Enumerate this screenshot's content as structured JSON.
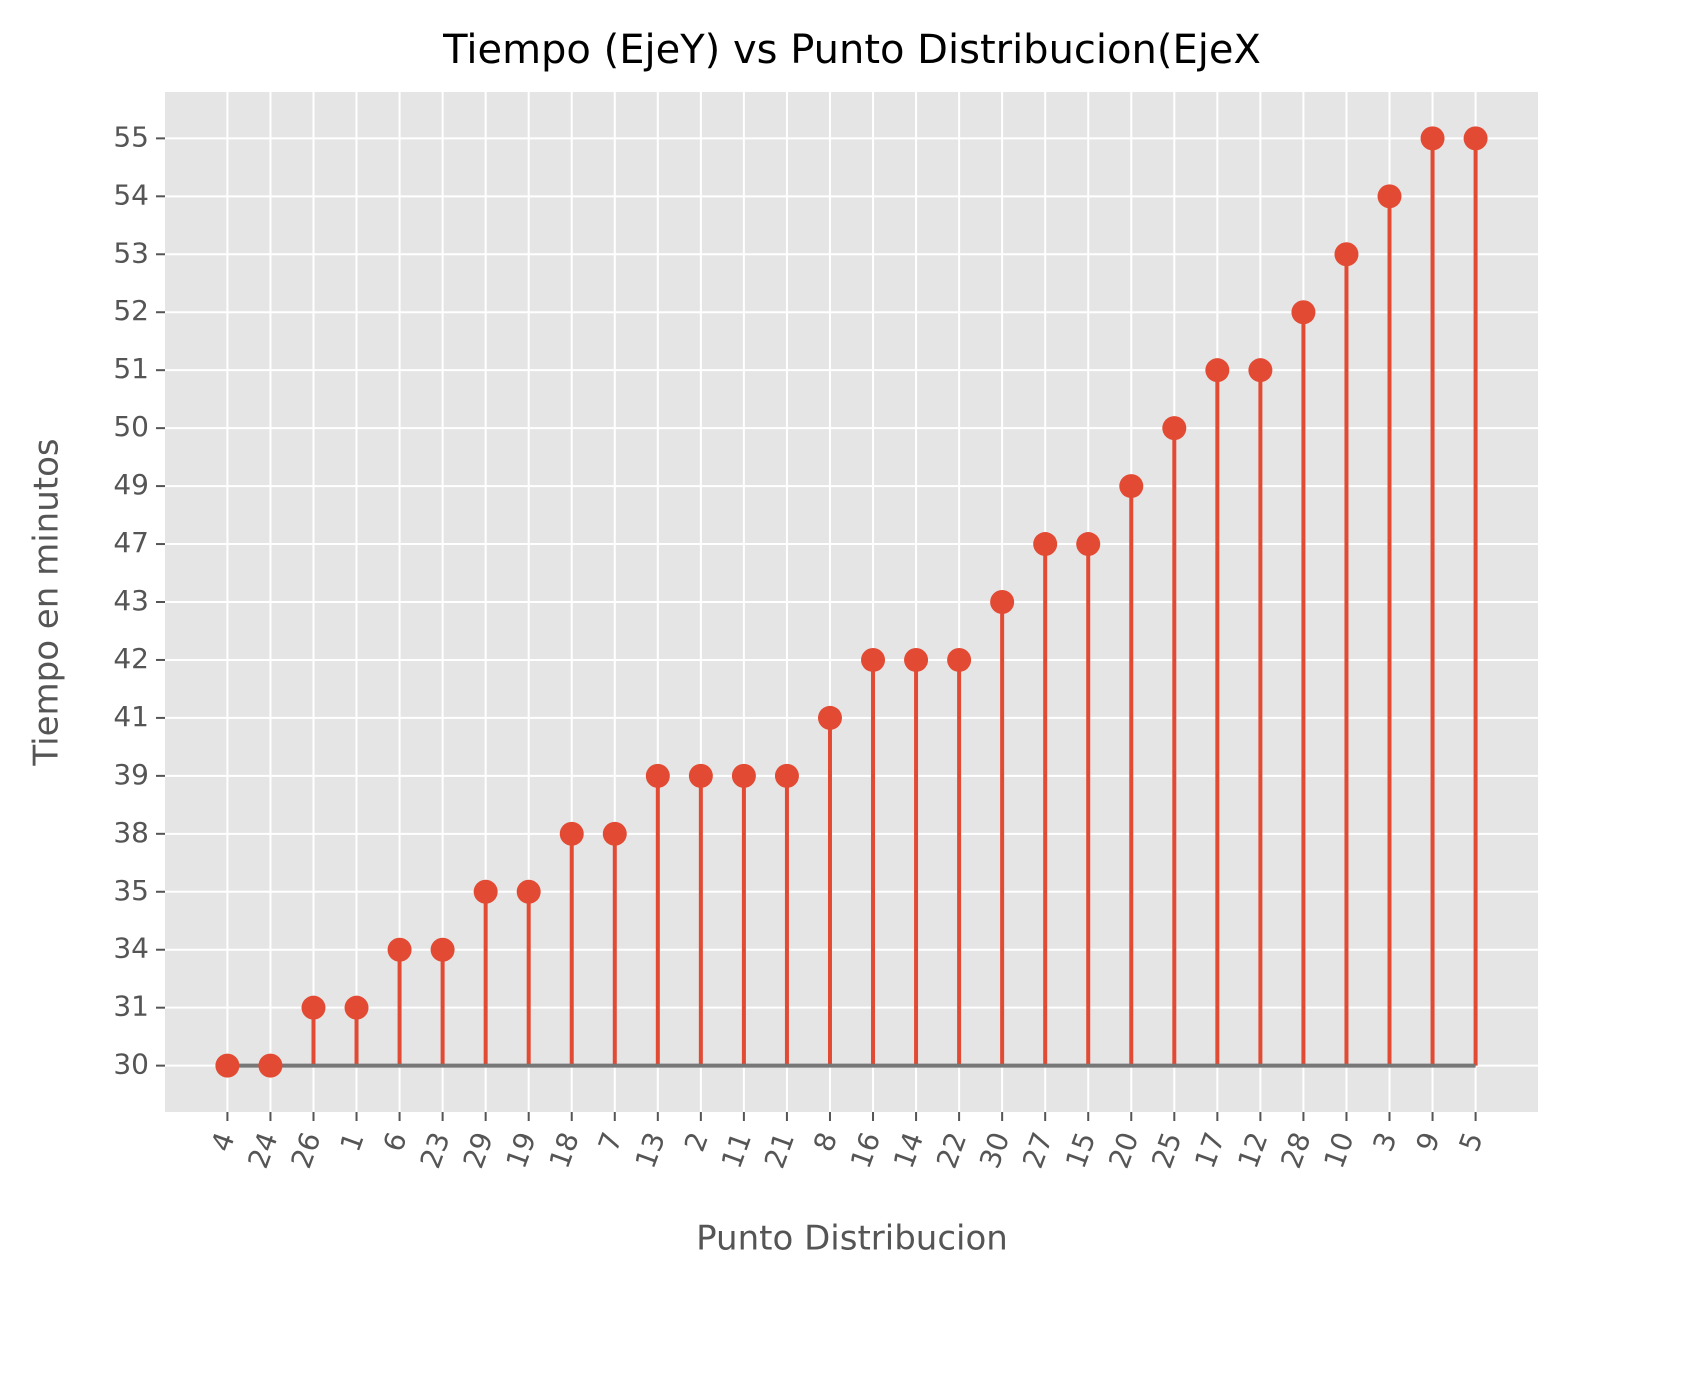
{
  "chart_data": {
    "type": "stem",
    "title": "Tiempo (EjeY) vs Punto Distribucion(EjeX",
    "x_label": "Punto Distribucion",
    "y_label": "Tiempo en minutos",
    "categories": [
      "4",
      "24",
      "26",
      "1",
      "6",
      "23",
      "29",
      "19",
      "18",
      "7",
      "13",
      "2",
      "11",
      "21",
      "8",
      "16",
      "14",
      "22",
      "30",
      "27",
      "15",
      "20",
      "25",
      "17",
      "12",
      "28",
      "10",
      "3",
      "9",
      "5"
    ],
    "values": [
      30,
      30,
      31,
      31,
      34,
      34,
      35,
      35,
      38,
      38,
      39,
      39,
      39,
      39,
      41,
      42,
      42,
      42,
      43,
      47,
      47,
      49,
      50,
      51,
      51,
      52,
      53,
      54,
      55,
      55
    ],
    "y_scale": "category",
    "yticks": [
      30,
      31,
      34,
      35,
      38,
      39,
      41,
      42,
      43,
      47,
      49,
      50,
      51,
      52,
      53,
      54,
      55
    ],
    "color": "#e24a33",
    "baseline_color": "#777777",
    "grid": true
  }
}
